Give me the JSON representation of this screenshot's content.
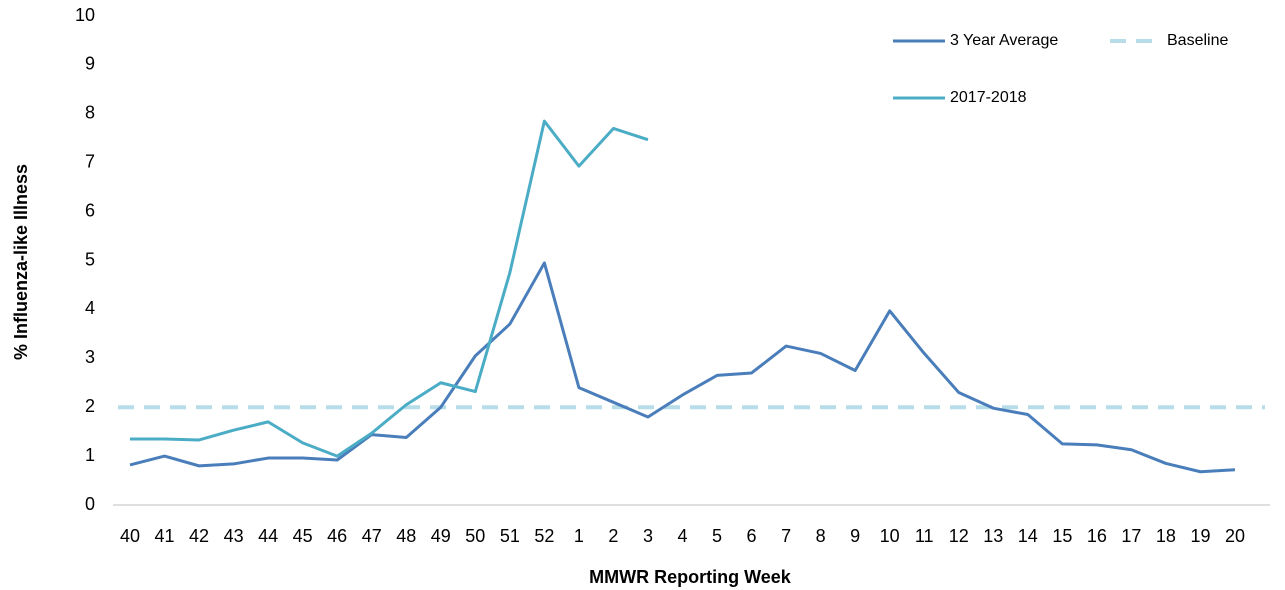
{
  "chart_data": {
    "type": "line",
    "y_label": "% Influenza-like Illness",
    "x_label": "MMWR Reporting Week",
    "categories": [
      "40",
      "41",
      "42",
      "43",
      "44",
      "45",
      "46",
      "47",
      "48",
      "49",
      "50",
      "51",
      "52",
      "1",
      "2",
      "3",
      "4",
      "5",
      "6",
      "7",
      "8",
      "9",
      "10",
      "11",
      "12",
      "13",
      "14",
      "15",
      "16",
      "17",
      "18",
      "19",
      "20"
    ],
    "series": [
      {
        "name": "3 Year Average",
        "color": "#4a7ebb",
        "dashed": false,
        "values": [
          0.82,
          1.0,
          0.8,
          0.84,
          0.96,
          0.96,
          0.92,
          1.44,
          1.38,
          2.0,
          3.05,
          3.7,
          4.95,
          2.4,
          2.1,
          1.8,
          2.25,
          2.65,
          2.7,
          3.25,
          3.1,
          2.75,
          3.97,
          3.1,
          2.3,
          1.98,
          1.85,
          1.25,
          1.23,
          1.13,
          0.85,
          0.68,
          0.72
        ]
      },
      {
        "name": "Baseline",
        "color": "#b7dee8",
        "dashed": true,
        "values": [
          2,
          2,
          2,
          2,
          2,
          2,
          2,
          2,
          2,
          2,
          2,
          2,
          2,
          2,
          2,
          2,
          2,
          2,
          2,
          2,
          2,
          2,
          2,
          2,
          2,
          2,
          2,
          2,
          2,
          2,
          2,
          2,
          2
        ]
      },
      {
        "name": "2017-2018",
        "color": "#4bacc6",
        "dashed": false,
        "values": [
          1.35,
          1.35,
          1.33,
          1.53,
          1.7,
          1.27,
          1.0,
          1.47,
          2.05,
          2.5,
          2.32,
          4.75,
          7.85,
          6.93,
          7.7,
          7.47,
          null,
          null,
          null,
          null,
          null,
          null,
          null,
          null,
          null,
          null,
          null,
          null,
          null,
          null,
          null,
          null,
          null
        ]
      }
    ],
    "ylim": [
      0,
      10
    ],
    "yticks": [
      0,
      1,
      2,
      3,
      4,
      5,
      6,
      7,
      8,
      9,
      10
    ],
    "grid": false,
    "legend": "top-right"
  }
}
